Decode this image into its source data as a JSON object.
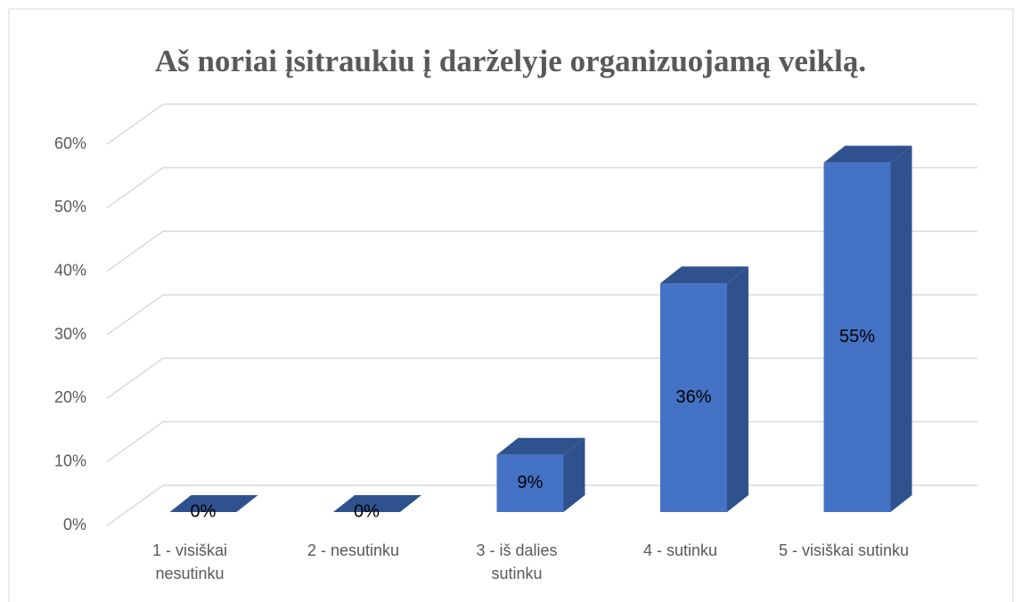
{
  "chart_data": {
    "type": "bar3d",
    "title": "Aš noriai įsitraukiu į darželyje organizuojamą veiklą.",
    "categories": [
      "1 - visiškai nesutinku",
      "2 - nesutinku",
      "3 - iš dalies sutinku",
      "4 - sutinku",
      "5 - visiškai sutinku"
    ],
    "values": [
      0,
      0,
      9,
      36,
      55
    ],
    "value_labels": [
      "0%",
      "0%",
      "9%",
      "36%",
      "55%"
    ],
    "color": "#4472c4",
    "ylim": [
      0,
      60
    ],
    "yticks": [
      {
        "value": 0,
        "label": "0%"
      },
      {
        "value": 10,
        "label": "10%"
      },
      {
        "value": 20,
        "label": "20%"
      },
      {
        "value": 30,
        "label": "30%"
      },
      {
        "value": 40,
        "label": "40%"
      },
      {
        "value": 50,
        "label": "50%"
      },
      {
        "value": 60,
        "label": "60%"
      }
    ],
    "grid": true
  }
}
